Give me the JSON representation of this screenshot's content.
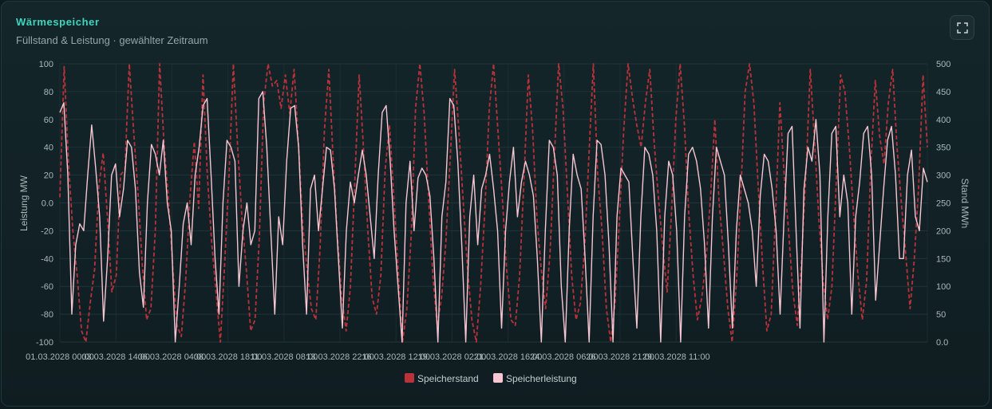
{
  "card": {
    "title": "Wärmespeicher",
    "subtitle": "Füllstand & Leistung · gewählter Zeitraum",
    "expand_icon": "expand-icon"
  },
  "colors": {
    "accent": "#3fd6be",
    "stand": "#b8323a",
    "leistung": "#f7c6d3",
    "grid": "#1f3538"
  },
  "chart_data": {
    "type": "line",
    "x_ticks": [
      "01.03.2028 00:00",
      "03.03.2028 14:00",
      "06.03.2028 04:00",
      "08.03.2028 18:00",
      "11.03.2028 08:00",
      "13.03.2028 22:00",
      "16.03.2028 12:00",
      "19.03.2028 02:00",
      "21.03.2028 16:00",
      "24.03.2028 06:00",
      "26.03.2028 21:00",
      "29.03.2028 11:00"
    ],
    "x_range": [
      "01.03.2028 00:00",
      "31.03.2028 23:00"
    ],
    "y_left": {
      "label": "Leistung MW",
      "range": [
        -100,
        100
      ],
      "ticks": [
        "100",
        "80",
        "60",
        "40",
        "20",
        "0.0",
        "-20",
        "-40",
        "-60",
        "-80",
        "-100"
      ]
    },
    "y_right": {
      "label": "Stand MWh",
      "range": [
        0,
        500
      ],
      "ticks": [
        "500",
        "450",
        "400",
        "350",
        "300",
        "250",
        "200",
        "150",
        "100",
        "50",
        "0.0"
      ]
    },
    "grid": true,
    "legend": {
      "position": "bottom-center"
    },
    "series": [
      {
        "name": "Speicherstand",
        "axis": "right",
        "style": "dashed",
        "values": [
          260,
          495,
          320,
          200,
          120,
          20,
          0,
          70,
          130,
          280,
          340,
          220,
          90,
          120,
          300,
          310,
          500,
          380,
          270,
          140,
          40,
          60,
          200,
          500,
          360,
          260,
          140,
          30,
          10,
          110,
          260,
          360,
          240,
          480,
          300,
          180,
          90,
          0,
          140,
          300,
          500,
          350,
          220,
          130,
          20,
          40,
          190,
          430,
          500,
          460,
          470,
          420,
          480,
          410,
          490,
          360,
          210,
          130,
          60,
          40,
          170,
          380,
          490,
          330,
          190,
          80,
          20,
          100,
          290,
          480,
          350,
          200,
          80,
          50,
          120,
          310,
          390,
          260,
          130,
          0,
          60,
          190,
          420,
          510,
          410,
          260,
          120,
          30,
          80,
          180,
          330,
          490,
          380,
          250,
          130,
          40,
          0,
          100,
          240,
          420,
          500,
          380,
          260,
          130,
          40,
          30,
          120,
          290,
          480,
          380,
          220,
          130,
          60,
          160,
          330,
          500,
          420,
          270,
          120,
          40,
          70,
          170,
          340,
          520,
          300,
          200,
          60,
          0,
          70,
          220,
          380,
          500,
          440,
          390,
          350,
          430,
          490,
          360,
          260,
          170,
          90,
          230,
          400,
          510,
          390,
          230,
          120,
          40,
          80,
          150,
          260,
          400,
          250,
          160,
          60,
          0,
          110,
          270,
          450,
          510,
          430,
          280,
          140,
          20,
          50,
          230,
          430,
          300,
          200,
          90,
          30,
          150,
          300,
          490,
          360,
          220,
          110,
          40,
          100,
          290,
          480,
          450,
          350,
          230,
          120,
          40,
          110,
          320,
          470,
          370,
          320,
          430,
          490,
          350,
          250,
          160,
          60,
          150,
          280,
          480,
          350
        ]
      },
      {
        "name": "Speicherleistung",
        "axis": "left",
        "style": "solid",
        "values": [
          65,
          72,
          20,
          -80,
          -30,
          -15,
          -20,
          20,
          56,
          25,
          -10,
          -85,
          -40,
          20,
          28,
          -10,
          10,
          45,
          40,
          10,
          -50,
          -75,
          0,
          42,
          35,
          20,
          45,
          0,
          -20,
          -100,
          -60,
          -15,
          0,
          -30,
          20,
          40,
          70,
          75,
          20,
          -40,
          -80,
          0,
          45,
          40,
          30,
          -60,
          -20,
          0,
          -30,
          -20,
          75,
          80,
          40,
          -20,
          -80,
          -10,
          -30,
          30,
          68,
          70,
          40,
          -30,
          -80,
          10,
          20,
          -20,
          10,
          40,
          38,
          10,
          -40,
          -90,
          -20,
          15,
          0,
          20,
          38,
          20,
          -10,
          -40,
          20,
          65,
          70,
          30,
          -20,
          -60,
          -100,
          0,
          30,
          -20,
          18,
          25,
          20,
          5,
          -40,
          -100,
          -10,
          15,
          75,
          70,
          30,
          -30,
          -100,
          -10,
          20,
          -30,
          10,
          20,
          35,
          10,
          -20,
          -90,
          -20,
          15,
          40,
          -10,
          15,
          30,
          20,
          5,
          -40,
          -100,
          -20,
          45,
          40,
          20,
          -60,
          -100,
          -20,
          35,
          20,
          10,
          -40,
          -100,
          -10,
          45,
          42,
          20,
          -30,
          -100,
          -10,
          25,
          20,
          15,
          -40,
          -90,
          -10,
          40,
          35,
          20,
          -20,
          -100,
          -10,
          30,
          20,
          -20,
          -100,
          -10,
          35,
          40,
          30,
          10,
          -30,
          -90,
          -10,
          40,
          30,
          20,
          -30,
          -90,
          -20,
          20,
          10,
          0,
          -20,
          -60,
          5,
          35,
          30,
          10,
          -20,
          -80,
          -10,
          50,
          55,
          -20,
          -90,
          10,
          40,
          30,
          60,
          20,
          -100,
          -10,
          50,
          55,
          -10,
          20,
          0,
          -80,
          -10,
          15,
          50,
          55,
          20,
          -70,
          -30,
          10,
          45,
          55,
          20,
          -40,
          -40,
          20,
          38,
          -10,
          -20,
          25,
          15
        ]
      }
    ]
  }
}
